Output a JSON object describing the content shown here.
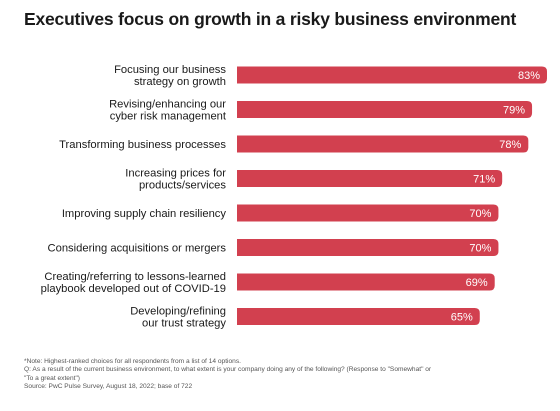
{
  "title": "Executives focus on growth in a risky business environment",
  "chart_data": {
    "type": "bar",
    "orientation": "horizontal",
    "title": "Executives focus on growth in a risky business environment",
    "categories": [
      [
        "Focusing our business",
        "strategy on growth"
      ],
      [
        "Revising/enhancing our",
        "cyber risk management"
      ],
      [
        "Transforming business processes"
      ],
      [
        "Increasing prices for",
        "products/services"
      ],
      [
        "Improving supply chain resiliency"
      ],
      [
        "Considering acquisitions or mergers"
      ],
      [
        "Creating/referring to lessons-learned",
        "playbook developed out of COVID-19"
      ],
      [
        "Developing/refining",
        "our trust strategy"
      ]
    ],
    "values": [
      83,
      79,
      78,
      71,
      70,
      70,
      69,
      65
    ],
    "value_labels": [
      "83%",
      "79%",
      "78%",
      "71%",
      "70%",
      "70%",
      "69%",
      "65%"
    ],
    "unit": "%",
    "xlim": [
      0,
      83
    ],
    "bar_color": "#d2404f",
    "label_color": "#ffffff",
    "grid": false,
    "legend": "none"
  },
  "notes": {
    "note": "*Note: Highest-ranked choices for all respondents from a list of 14 options.",
    "question_a": "Q: As a result of the current business environment, to what extent is your company doing any of the following? (Response to \"Somewhat\" or",
    "question_b": "\"To a great extent\")",
    "source": "Source: PwC Pulse Survey, August 18, 2022; base of 722"
  }
}
